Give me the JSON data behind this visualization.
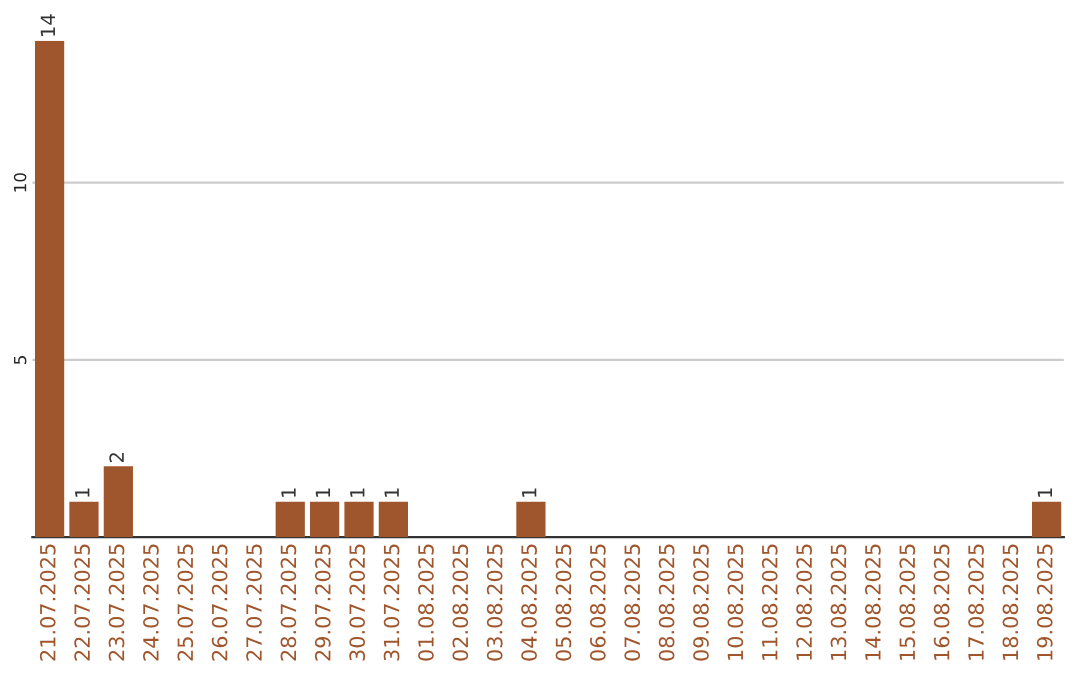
{
  "chart_data": {
    "type": "bar",
    "categories": [
      "21.07.2025",
      "22.07.2025",
      "23.07.2025",
      "24.07.2025",
      "25.07.2025",
      "26.07.2025",
      "27.07.2025",
      "28.07.2025",
      "29.07.2025",
      "30.07.2025",
      "31.07.2025",
      "01.08.2025",
      "02.08.2025",
      "03.08.2025",
      "04.08.2025",
      "05.08.2025",
      "06.08.2025",
      "07.08.2025",
      "08.08.2025",
      "09.08.2025",
      "10.08.2025",
      "11.08.2025",
      "12.08.2025",
      "13.08.2025",
      "14.08.2025",
      "15.08.2025",
      "16.08.2025",
      "17.08.2025",
      "18.08.2025",
      "19.08.2025"
    ],
    "values": [
      14,
      1,
      2,
      0,
      0,
      0,
      0,
      1,
      1,
      1,
      1,
      0,
      0,
      0,
      1,
      0,
      0,
      0,
      0,
      0,
      0,
      0,
      0,
      0,
      0,
      0,
      0,
      0,
      0,
      1
    ],
    "value_labels": [
      "14",
      "1",
      "2",
      null,
      null,
      null,
      null,
      "1",
      "1",
      "1",
      "1",
      null,
      null,
      null,
      "1",
      null,
      null,
      null,
      null,
      null,
      null,
      null,
      null,
      null,
      null,
      null,
      null,
      null,
      null,
      "1"
    ],
    "color": "#a0562c",
    "ylim": [
      0,
      14
    ],
    "yticks": [
      5,
      10
    ],
    "grid": "y"
  }
}
